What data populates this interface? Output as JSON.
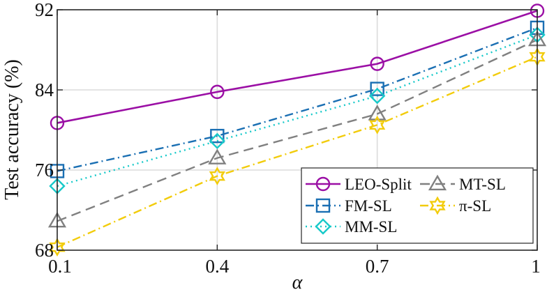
{
  "chart_data": {
    "type": "line",
    "title": "",
    "xlabel": "α",
    "ylabel": "Test accuracy (%)",
    "x": [
      0.1,
      0.4,
      0.7,
      1
    ],
    "x_tick_labels": [
      "0.1",
      "0.4",
      "0.7",
      "1"
    ],
    "xlim": [
      0.1,
      1
    ],
    "ylim": [
      68,
      92
    ],
    "y_ticks": [
      68,
      76,
      84,
      92
    ],
    "y_tick_labels": [
      "68",
      "76",
      "84",
      "92"
    ],
    "grid": true,
    "legend_position": "bottom-right",
    "series": [
      {
        "name": "LEO-Split",
        "values": [
          80.7,
          83.8,
          86.6,
          91.9
        ],
        "color": "#9b0fa5",
        "dash": "solid",
        "marker": "circle"
      },
      {
        "name": "FM-SL",
        "values": [
          75.9,
          79.4,
          84.1,
          90.2
        ],
        "color": "#1a6fb3",
        "dash": "dashdot",
        "marker": "square"
      },
      {
        "name": "MM-SL",
        "values": [
          74.4,
          78.9,
          83.4,
          89.5
        ],
        "color": "#17c9c9",
        "dash": "dotted",
        "marker": "diamond"
      },
      {
        "name": "MT-SL",
        "values": [
          70.9,
          77.2,
          81.6,
          89.0
        ],
        "color": "#808080",
        "dash": "dashed",
        "marker": "triangle"
      },
      {
        "name": "π-SL",
        "values": [
          68.3,
          75.4,
          80.5,
          87.3
        ],
        "color": "#f2cc0c",
        "dash": "dashdot",
        "marker": "hexagram"
      }
    ]
  }
}
